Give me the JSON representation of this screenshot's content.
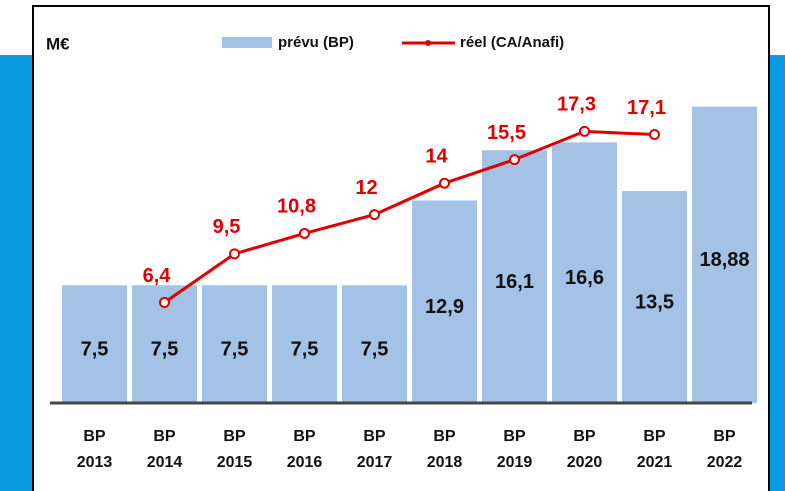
{
  "chart_data": {
    "type": "bar",
    "unit": "M€",
    "categories": [
      "BP\n2013",
      "BP\n2014",
      "BP\n2015",
      "BP\n2016",
      "BP\n2017",
      "BP\n2018",
      "BP\n2019",
      "BP\n2020",
      "BP\n2021",
      "BP\n2022"
    ],
    "series": [
      {
        "name": "prévu (BP)",
        "type": "bar",
        "color": "#a4c2e6",
        "values": [
          7.5,
          7.5,
          7.5,
          7.5,
          7.5,
          12.9,
          16.1,
          16.6,
          13.5,
          18.88
        ],
        "value_labels": [
          "7,5",
          "7,5",
          "7,5",
          "7,5",
          "7,5",
          "12,9",
          "16,1",
          "16,6",
          "13,5",
          "18,88"
        ]
      },
      {
        "name": "réel (CA/Anafi)",
        "type": "line",
        "color": "#e00000",
        "values": [
          null,
          6.4,
          9.5,
          10.8,
          12,
          14,
          15.5,
          17.3,
          17.1,
          null
        ],
        "value_labels": [
          null,
          "6,4",
          "9,5",
          "10,8",
          "12",
          "14",
          "15,5",
          "17,3",
          "17,1",
          null
        ]
      }
    ]
  }
}
